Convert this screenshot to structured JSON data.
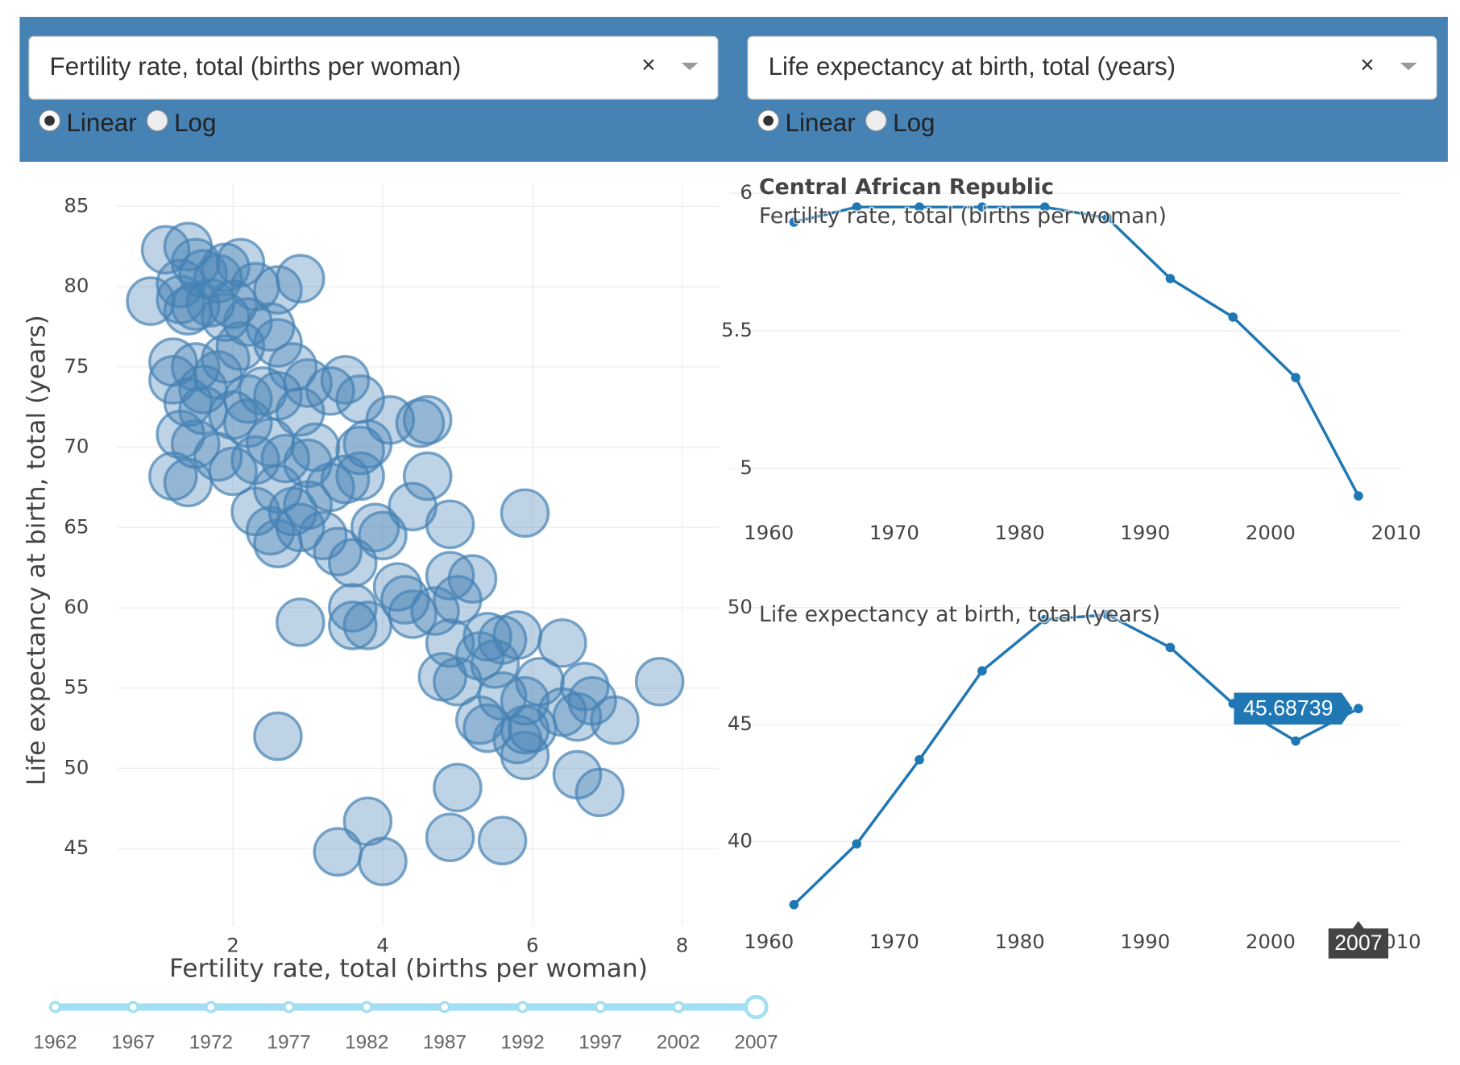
{
  "controls": {
    "x_axis": {
      "value": "Fertility rate, total (births per woman)",
      "scale_options": [
        "Linear",
        "Log"
      ],
      "selected": 0
    },
    "y_axis": {
      "value": "Life expectancy at birth, total (years)",
      "scale_options": [
        "Linear",
        "Log"
      ],
      "selected": 0
    }
  },
  "chart_data": [
    {
      "type": "scatter",
      "x_label": "Fertility rate, total (births per woman)",
      "y_label": "Life expectancy at birth, total (years)",
      "color": "#4682b4",
      "grid": true,
      "xlim": [
        0.45,
        8.49
      ],
      "ylim": [
        40.2,
        86.5
      ],
      "xticks": [
        2,
        4,
        6,
        8
      ],
      "yticks": [
        45,
        50,
        55,
        60,
        65,
        70,
        75,
        80,
        85
      ],
      "x": [
        1.1,
        1.4,
        1.5,
        1.6,
        1.3,
        1.9,
        2.1,
        1.8,
        2.3,
        2.9,
        2.6,
        0.9,
        1.3,
        1.5,
        1.7,
        2.0,
        1.9,
        1.4,
        2.2,
        2.5,
        2.6,
        2.1,
        1.9,
        1.2,
        1.5,
        2.8,
        1.8,
        1.2,
        1.6,
        2.4,
        2.6,
        3.0,
        3.3,
        3.5,
        2.2,
        1.4,
        1.6,
        2.0,
        2.9,
        3.7,
        4.1,
        4.5,
        4.6,
        1.3,
        1.5,
        2.2,
        2.5,
        3.1,
        3.7,
        3.8,
        2.3,
        2.7,
        3.0,
        1.8,
        1.2,
        1.4,
        2.0,
        3.5,
        3.7,
        4.6,
        2.6,
        3.3,
        3.0,
        2.8,
        4.4,
        2.3,
        3.9,
        4.0,
        4.9,
        5.9,
        2.5,
        2.9,
        3.2,
        2.6,
        3.4,
        3.6,
        4.9,
        5.2,
        4.2,
        4.3,
        5.0,
        3.6,
        4.4,
        4.7,
        3.6,
        3.8,
        2.9,
        5.4,
        5.6,
        5.8,
        4.9,
        6.4,
        5.3,
        5.5,
        4.8,
        5.0,
        6.1,
        7.7,
        6.7,
        5.6,
        5.9,
        6.8,
        6.4,
        6.6,
        5.3,
        5.4,
        5.9,
        6.0,
        7.1,
        5.8,
        2.6,
        5.9,
        6.6,
        6.9,
        5.0,
        3.8,
        3.4,
        4.0,
        4.9,
        5.6
      ],
      "y": [
        82.3,
        82.5,
        81.5,
        80.8,
        80.2,
        81.2,
        81.5,
        80.5,
        80.0,
        80.5,
        79.8,
        79.1,
        79.2,
        78.8,
        79.0,
        78.9,
        78.1,
        78.5,
        77.8,
        77.5,
        76.5,
        76.3,
        75.5,
        75.3,
        75.0,
        75.0,
        74.5,
        74.2,
        73.6,
        73.5,
        73.2,
        74.0,
        73.5,
        74.2,
        73.0,
        72.8,
        72.3,
        72.0,
        72.2,
        73.0,
        71.7,
        71.5,
        71.7,
        70.8,
        70.2,
        71.5,
        70.3,
        70.0,
        69.8,
        70.2,
        69.2,
        69.3,
        69.0,
        69.4,
        68.2,
        67.8,
        68.5,
        68.0,
        68.2,
        68.2,
        67.4,
        67.5,
        66.4,
        66.0,
        66.3,
        66.0,
        65.0,
        64.5,
        65.2,
        65.9,
        64.8,
        65.0,
        64.5,
        64.0,
        63.5,
        62.8,
        62.0,
        61.8,
        61.3,
        60.5,
        60.5,
        60.0,
        59.6,
        59.8,
        58.9,
        58.9,
        59.1,
        58.2,
        58.0,
        58.3,
        57.8,
        57.8,
        57.0,
        56.5,
        55.7,
        55.4,
        55.4,
        55.4,
        55.1,
        54.5,
        54.2,
        54.2,
        53.5,
        53.2,
        53.0,
        52.5,
        52.4,
        52.5,
        53.0,
        51.8,
        52.0,
        50.8,
        49.6,
        48.5,
        48.8,
        46.7,
        44.8,
        44.2,
        45.7,
        45.5
      ]
    },
    {
      "type": "line",
      "title": "Central African Republic",
      "subtitle": "Fertility rate, total (births per woman)",
      "color": "#1f77b4",
      "grid": true,
      "x": [
        1962,
        1967,
        1972,
        1977,
        1982,
        1987,
        1992,
        1997,
        2002,
        2007
      ],
      "values": [
        5.895,
        5.95,
        5.95,
        5.95,
        5.95,
        5.91,
        5.69,
        5.55,
        5.33,
        4.9
      ],
      "xlim": [
        1956.9,
        2010.4
      ],
      "ylim": [
        4.84,
        6.05
      ],
      "xticks": [
        1960,
        1970,
        1980,
        1990,
        2000,
        2010
      ],
      "yticks": [
        5,
        5.5,
        6
      ]
    },
    {
      "type": "line",
      "subtitle": "Life expectancy at birth, total (years)",
      "color": "#1f77b4",
      "grid": true,
      "x": [
        1962,
        1967,
        1972,
        1977,
        1982,
        1987,
        1992,
        1997,
        2002,
        2007
      ],
      "values": [
        37.3,
        39.9,
        43.5,
        47.3,
        49.5,
        49.7,
        48.3,
        45.9,
        44.3,
        45.68739
      ],
      "xlim": [
        1956.9,
        2010.4
      ],
      "ylim": [
        36.6,
        50.8
      ],
      "xticks": [
        1960,
        1970,
        1980,
        1990,
        2000,
        2010
      ],
      "yticks": [
        40,
        45,
        50
      ]
    }
  ],
  "slider": {
    "marks": [
      1962,
      1967,
      1972,
      1977,
      1982,
      1987,
      1992,
      1997,
      2002,
      2007
    ],
    "selected": 9
  }
}
